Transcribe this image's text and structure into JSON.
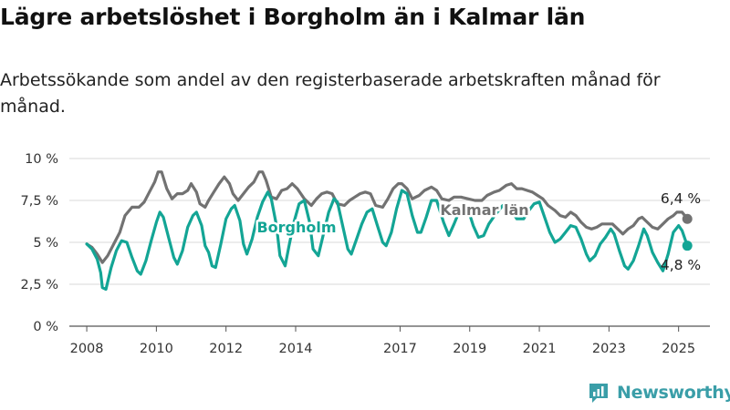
{
  "title": "Lägre arbetslöshet i Borgholm än i Kalmar län",
  "subtitle": "Arbetssökande som andel av den registerbaserade arbetskraften månad för månad.",
  "brand": "Newsworthy",
  "colors": {
    "borgholm": "#13a595",
    "kalmar": "#727272",
    "grid": "#d9d9d9",
    "brand": "#3a9ea8"
  },
  "chart_data": {
    "type": "line",
    "ylim": [
      0,
      10
    ],
    "yticks": [
      0,
      2.5,
      5,
      7.5,
      10
    ],
    "ytick_labels": [
      "0 %",
      "2,5 %",
      "5 %",
      "7,5 %",
      "10 %"
    ],
    "xlim": [
      2007.5,
      2025.9
    ],
    "xticks": [
      2008,
      2010,
      2012,
      2014,
      2017,
      2019,
      2021,
      2023,
      2025
    ],
    "xtick_labels": [
      "2008",
      "2010",
      "2012",
      "2014",
      "2017",
      "2019",
      "2021",
      "2023",
      "2025"
    ],
    "grid": true,
    "series": [
      {
        "name": "Kalmar län",
        "end_label": "6,4 %",
        "points": [
          [
            2008.0,
            4.9
          ],
          [
            2008.15,
            4.7
          ],
          [
            2008.3,
            4.3
          ],
          [
            2008.45,
            3.8
          ],
          [
            2008.6,
            4.2
          ],
          [
            2008.8,
            5.0
          ],
          [
            2008.95,
            5.6
          ],
          [
            2009.1,
            6.6
          ],
          [
            2009.3,
            7.1
          ],
          [
            2009.5,
            7.1
          ],
          [
            2009.65,
            7.4
          ],
          [
            2009.8,
            8.0
          ],
          [
            2009.95,
            8.6
          ],
          [
            2010.05,
            9.2
          ],
          [
            2010.15,
            9.2
          ],
          [
            2010.3,
            8.2
          ],
          [
            2010.45,
            7.6
          ],
          [
            2010.6,
            7.9
          ],
          [
            2010.75,
            7.9
          ],
          [
            2010.9,
            8.1
          ],
          [
            2011.0,
            8.5
          ],
          [
            2011.15,
            8.0
          ],
          [
            2011.25,
            7.3
          ],
          [
            2011.4,
            7.1
          ],
          [
            2011.5,
            7.5
          ],
          [
            2011.65,
            8.0
          ],
          [
            2011.8,
            8.5
          ],
          [
            2011.95,
            8.9
          ],
          [
            2012.1,
            8.5
          ],
          [
            2012.2,
            7.9
          ],
          [
            2012.35,
            7.5
          ],
          [
            2012.5,
            7.9
          ],
          [
            2012.65,
            8.3
          ],
          [
            2012.8,
            8.6
          ],
          [
            2012.95,
            9.2
          ],
          [
            2013.05,
            9.2
          ],
          [
            2013.15,
            8.7
          ],
          [
            2013.3,
            7.7
          ],
          [
            2013.45,
            7.6
          ],
          [
            2013.6,
            8.1
          ],
          [
            2013.75,
            8.2
          ],
          [
            2013.9,
            8.5
          ],
          [
            2014.05,
            8.2
          ],
          [
            2014.25,
            7.6
          ],
          [
            2014.45,
            7.2
          ],
          [
            2014.6,
            7.6
          ],
          [
            2014.75,
            7.9
          ],
          [
            2014.9,
            8.0
          ],
          [
            2015.05,
            7.9
          ],
          [
            2015.2,
            7.3
          ],
          [
            2015.4,
            7.2
          ],
          [
            2015.55,
            7.5
          ],
          [
            2015.7,
            7.7
          ],
          [
            2015.85,
            7.9
          ],
          [
            2016.0,
            8.0
          ],
          [
            2016.15,
            7.9
          ],
          [
            2016.3,
            7.2
          ],
          [
            2016.5,
            7.1
          ],
          [
            2016.65,
            7.6
          ],
          [
            2016.8,
            8.2
          ],
          [
            2016.95,
            8.5
          ],
          [
            2017.05,
            8.5
          ],
          [
            2017.2,
            8.2
          ],
          [
            2017.35,
            7.6
          ],
          [
            2017.55,
            7.8
          ],
          [
            2017.7,
            8.1
          ],
          [
            2017.9,
            8.3
          ],
          [
            2018.05,
            8.1
          ],
          [
            2018.2,
            7.6
          ],
          [
            2018.4,
            7.5
          ],
          [
            2018.55,
            7.7
          ],
          [
            2018.75,
            7.7
          ],
          [
            2018.95,
            7.6
          ],
          [
            2019.15,
            7.5
          ],
          [
            2019.35,
            7.5
          ],
          [
            2019.5,
            7.8
          ],
          [
            2019.7,
            8.0
          ],
          [
            2019.85,
            8.1
          ],
          [
            2020.05,
            8.4
          ],
          [
            2020.2,
            8.5
          ],
          [
            2020.35,
            8.2
          ],
          [
            2020.5,
            8.2
          ],
          [
            2020.65,
            8.1
          ],
          [
            2020.8,
            8.0
          ],
          [
            2020.95,
            7.8
          ],
          [
            2021.1,
            7.6
          ],
          [
            2021.25,
            7.2
          ],
          [
            2021.45,
            6.9
          ],
          [
            2021.6,
            6.6
          ],
          [
            2021.75,
            6.5
          ],
          [
            2021.9,
            6.8
          ],
          [
            2022.05,
            6.6
          ],
          [
            2022.2,
            6.2
          ],
          [
            2022.35,
            5.9
          ],
          [
            2022.5,
            5.8
          ],
          [
            2022.65,
            5.9
          ],
          [
            2022.8,
            6.1
          ],
          [
            2022.95,
            6.1
          ],
          [
            2023.1,
            6.1
          ],
          [
            2023.25,
            5.8
          ],
          [
            2023.4,
            5.5
          ],
          [
            2023.55,
            5.8
          ],
          [
            2023.7,
            6.0
          ],
          [
            2023.85,
            6.4
          ],
          [
            2023.95,
            6.5
          ],
          [
            2024.1,
            6.2
          ],
          [
            2024.25,
            5.9
          ],
          [
            2024.4,
            5.8
          ],
          [
            2024.55,
            6.1
          ],
          [
            2024.7,
            6.4
          ],
          [
            2024.85,
            6.6
          ],
          [
            2024.95,
            6.8
          ],
          [
            2025.1,
            6.8
          ],
          [
            2025.25,
            6.4
          ]
        ]
      },
      {
        "name": "Borgholm",
        "end_label": "4,8 %",
        "points": [
          [
            2008.0,
            4.9
          ],
          [
            2008.15,
            4.6
          ],
          [
            2008.3,
            4.0
          ],
          [
            2008.4,
            3.2
          ],
          [
            2008.45,
            2.3
          ],
          [
            2008.55,
            2.2
          ],
          [
            2008.7,
            3.5
          ],
          [
            2008.85,
            4.5
          ],
          [
            2009.0,
            5.1
          ],
          [
            2009.15,
            5.0
          ],
          [
            2009.3,
            4.1
          ],
          [
            2009.45,
            3.3
          ],
          [
            2009.55,
            3.1
          ],
          [
            2009.7,
            3.9
          ],
          [
            2009.85,
            5.1
          ],
          [
            2010.0,
            6.2
          ],
          [
            2010.1,
            6.8
          ],
          [
            2010.2,
            6.5
          ],
          [
            2010.35,
            5.3
          ],
          [
            2010.5,
            4.1
          ],
          [
            2010.6,
            3.7
          ],
          [
            2010.75,
            4.5
          ],
          [
            2010.9,
            5.9
          ],
          [
            2011.05,
            6.6
          ],
          [
            2011.15,
            6.8
          ],
          [
            2011.3,
            6.0
          ],
          [
            2011.4,
            4.8
          ],
          [
            2011.5,
            4.4
          ],
          [
            2011.6,
            3.6
          ],
          [
            2011.7,
            3.5
          ],
          [
            2011.85,
            4.9
          ],
          [
            2012.0,
            6.4
          ],
          [
            2012.15,
            7.0
          ],
          [
            2012.25,
            7.2
          ],
          [
            2012.4,
            6.3
          ],
          [
            2012.5,
            4.9
          ],
          [
            2012.6,
            4.3
          ],
          [
            2012.75,
            5.2
          ],
          [
            2012.9,
            6.5
          ],
          [
            2013.05,
            7.4
          ],
          [
            2013.2,
            8.0
          ],
          [
            2013.3,
            7.6
          ],
          [
            2013.45,
            6.0
          ],
          [
            2013.55,
            4.2
          ],
          [
            2013.7,
            3.6
          ],
          [
            2013.8,
            4.7
          ],
          [
            2013.95,
            6.2
          ],
          [
            2014.1,
            7.3
          ],
          [
            2014.25,
            7.5
          ],
          [
            2014.4,
            6.2
          ],
          [
            2014.5,
            4.6
          ],
          [
            2014.65,
            4.2
          ],
          [
            2014.8,
            5.5
          ],
          [
            2014.95,
            6.8
          ],
          [
            2015.1,
            7.6
          ],
          [
            2015.2,
            7.4
          ],
          [
            2015.35,
            6.0
          ],
          [
            2015.5,
            4.6
          ],
          [
            2015.6,
            4.3
          ],
          [
            2015.75,
            5.2
          ],
          [
            2015.9,
            6.1
          ],
          [
            2016.05,
            6.8
          ],
          [
            2016.2,
            7.0
          ],
          [
            2016.35,
            6.0
          ],
          [
            2016.5,
            5.0
          ],
          [
            2016.6,
            4.8
          ],
          [
            2016.75,
            5.6
          ],
          [
            2016.9,
            7.0
          ],
          [
            2017.05,
            8.1
          ],
          [
            2017.2,
            7.9
          ],
          [
            2017.35,
            6.6
          ],
          [
            2017.5,
            5.6
          ],
          [
            2017.6,
            5.6
          ],
          [
            2017.75,
            6.5
          ],
          [
            2017.9,
            7.5
          ],
          [
            2018.05,
            7.5
          ],
          [
            2018.25,
            6.2
          ],
          [
            2018.4,
            5.4
          ],
          [
            2018.55,
            6.1
          ],
          [
            2018.75,
            7.1
          ],
          [
            2018.95,
            7.0
          ],
          [
            2019.1,
            6.0
          ],
          [
            2019.25,
            5.3
          ],
          [
            2019.4,
            5.4
          ],
          [
            2019.55,
            6.1
          ],
          [
            2019.75,
            6.7
          ],
          [
            2019.95,
            7.2
          ],
          [
            2020.15,
            7.1
          ],
          [
            2020.35,
            6.4
          ],
          [
            2020.55,
            6.4
          ],
          [
            2020.7,
            6.9
          ],
          [
            2020.85,
            7.3
          ],
          [
            2021.0,
            7.4
          ],
          [
            2021.15,
            6.5
          ],
          [
            2021.3,
            5.6
          ],
          [
            2021.45,
            5.0
          ],
          [
            2021.6,
            5.2
          ],
          [
            2021.75,
            5.6
          ],
          [
            2021.9,
            6.0
          ],
          [
            2022.05,
            5.9
          ],
          [
            2022.2,
            5.2
          ],
          [
            2022.35,
            4.3
          ],
          [
            2022.45,
            3.9
          ],
          [
            2022.6,
            4.2
          ],
          [
            2022.75,
            4.9
          ],
          [
            2022.9,
            5.3
          ],
          [
            2023.05,
            5.8
          ],
          [
            2023.15,
            5.5
          ],
          [
            2023.3,
            4.5
          ],
          [
            2023.45,
            3.6
          ],
          [
            2023.55,
            3.4
          ],
          [
            2023.7,
            3.9
          ],
          [
            2023.85,
            4.8
          ],
          [
            2024.0,
            5.8
          ],
          [
            2024.1,
            5.4
          ],
          [
            2024.25,
            4.4
          ],
          [
            2024.4,
            3.8
          ],
          [
            2024.55,
            3.3
          ],
          [
            2024.7,
            4.3
          ],
          [
            2024.85,
            5.6
          ],
          [
            2025.0,
            6.0
          ],
          [
            2025.1,
            5.7
          ],
          [
            2025.25,
            4.8
          ]
        ]
      }
    ]
  }
}
